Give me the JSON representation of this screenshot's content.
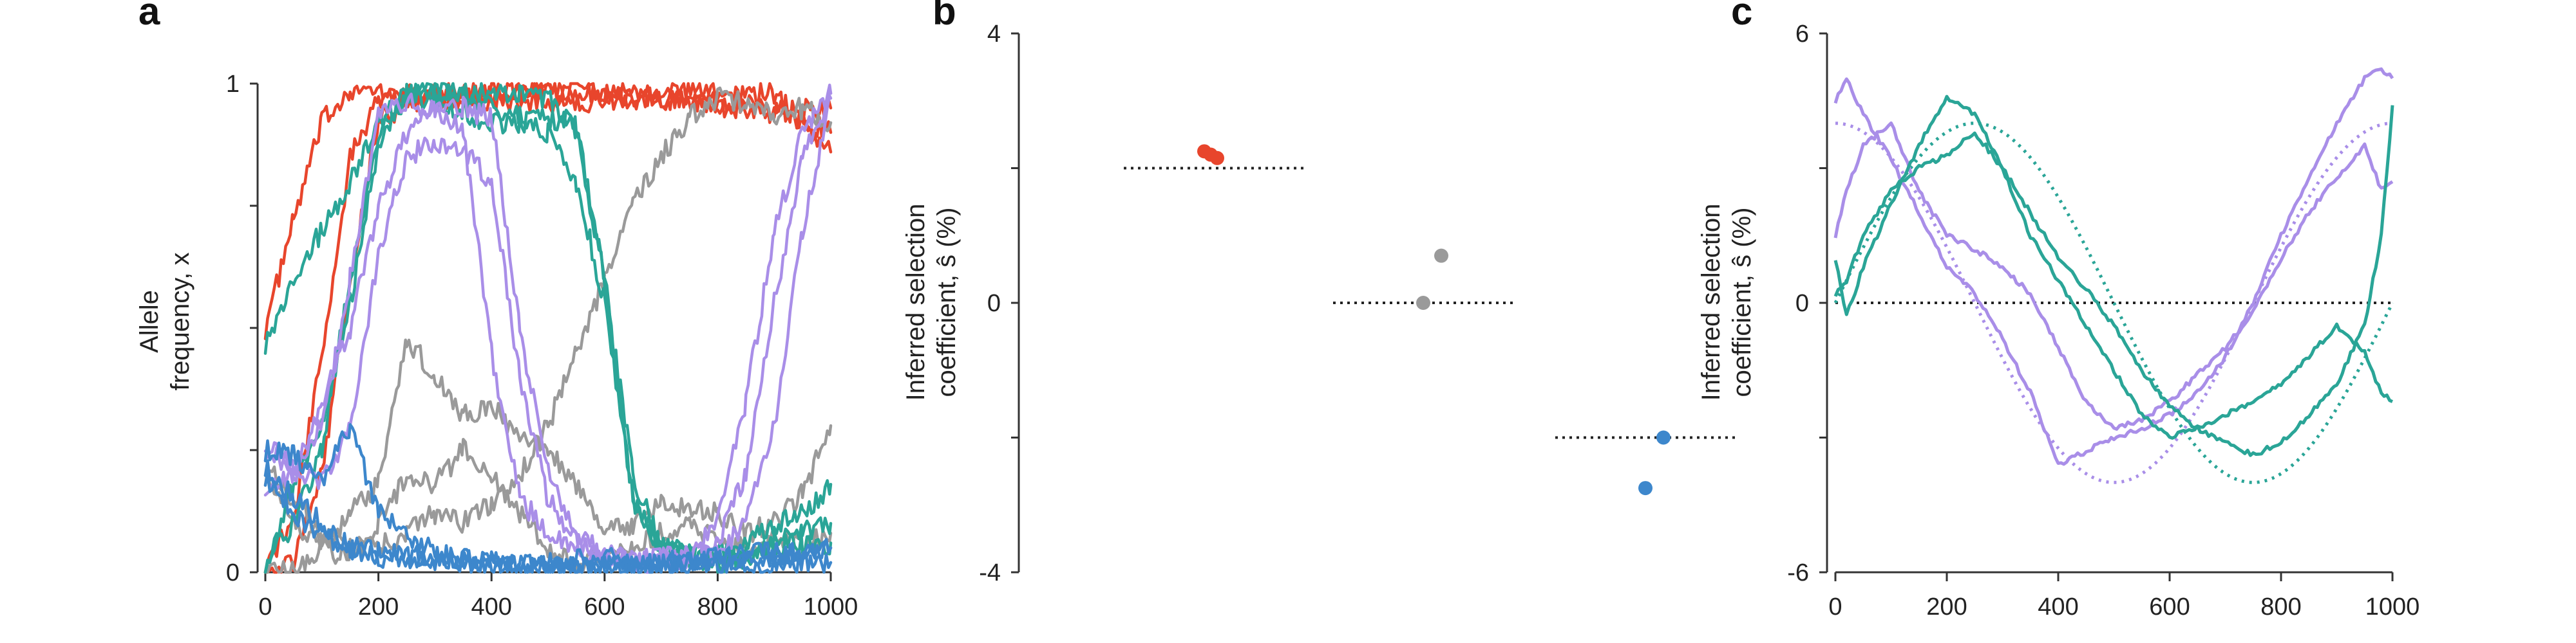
{
  "chart_data": [
    {
      "panel": "a",
      "type": "line",
      "ylabel_lines": [
        "Allele",
        "frequency, x"
      ],
      "xlim": [
        0,
        1000
      ],
      "ylim": [
        0,
        1
      ],
      "x_ticks": [
        0,
        200,
        400,
        600,
        800,
        1000
      ],
      "y_ticks": [
        0,
        0.25,
        0.5,
        0.75,
        1
      ],
      "y_tick_labels": [
        "0",
        "",
        "",
        "",
        "1"
      ],
      "grid": false,
      "legend": "none",
      "series": [
        {
          "color": "#e8452c",
          "x": [
            0,
            50,
            100,
            150,
            200,
            300,
            500,
            700,
            900,
            1000
          ],
          "y": [
            0.5,
            0.72,
            0.92,
            0.99,
            0.98,
            0.97,
            0.98,
            0.99,
            0.98,
            0.86
          ]
        },
        {
          "color": "#e8452c",
          "x": [
            0,
            50,
            100,
            150,
            200,
            300,
            500,
            700,
            900,
            1000
          ],
          "y": [
            0.02,
            0.1,
            0.45,
            0.85,
            0.97,
            0.98,
            0.99,
            0.97,
            0.94,
            0.95
          ]
        },
        {
          "color": "#e8452c",
          "x": [
            0,
            50,
            100,
            150,
            200,
            300,
            500,
            700,
            900,
            1000
          ],
          "y": [
            0.0,
            0.02,
            0.2,
            0.6,
            0.93,
            0.97,
            0.96,
            0.97,
            0.95,
            0.9
          ]
        },
        {
          "color": "#9a9a9a",
          "x": [
            0,
            50,
            100,
            150,
            200,
            250,
            300,
            350,
            400,
            450,
            500,
            550,
            600,
            650,
            700,
            750,
            800,
            850,
            900,
            950,
            1000
          ],
          "y": [
            0.22,
            0.15,
            0.08,
            0.05,
            0.05,
            0.08,
            0.12,
            0.1,
            0.14,
            0.2,
            0.3,
            0.45,
            0.6,
            0.75,
            0.85,
            0.93,
            0.97,
            0.96,
            0.93,
            0.95,
            0.92
          ]
        },
        {
          "color": "#9a9a9a",
          "x": [
            0,
            50,
            100,
            150,
            200,
            250,
            300,
            350,
            400,
            450,
            500,
            550,
            600,
            650,
            700,
            750,
            800,
            850,
            900,
            950,
            1000
          ],
          "y": [
            0.02,
            0.0,
            0.05,
            0.12,
            0.18,
            0.48,
            0.4,
            0.32,
            0.34,
            0.28,
            0.25,
            0.18,
            0.08,
            0.1,
            0.15,
            0.13,
            0.12,
            0.08,
            0.1,
            0.16,
            0.3
          ]
        },
        {
          "color": "#9a9a9a",
          "x": [
            0,
            50,
            100,
            150,
            200,
            250,
            300,
            350,
            400,
            450,
            500,
            550,
            600,
            650,
            700,
            750,
            800,
            850,
            900,
            950,
            1000
          ],
          "y": [
            0.2,
            0.1,
            0.05,
            0.03,
            0.1,
            0.2,
            0.18,
            0.25,
            0.2,
            0.12,
            0.05,
            0.02,
            0.03,
            0.05,
            0.08,
            0.1,
            0.06,
            0.05,
            0.07,
            0.06,
            0.08
          ]
        },
        {
          "color": "#2aa597",
          "x": [
            0,
            50,
            100,
            150,
            200,
            250,
            300,
            350,
            400,
            450,
            500,
            550,
            600,
            650,
            700,
            750,
            800,
            850,
            900,
            950,
            1000
          ],
          "y": [
            0.47,
            0.6,
            0.7,
            0.8,
            0.92,
            0.98,
            0.98,
            0.97,
            0.95,
            0.93,
            0.9,
            0.8,
            0.55,
            0.15,
            0.05,
            0.04,
            0.04,
            0.06,
            0.1,
            0.12,
            0.18
          ]
        },
        {
          "color": "#2aa597",
          "x": [
            0,
            50,
            100,
            150,
            200,
            250,
            300,
            350,
            400,
            450,
            500,
            550,
            600,
            650,
            700,
            750,
            800,
            850,
            900,
            950,
            1000
          ],
          "y": [
            0.0,
            0.18,
            0.3,
            0.55,
            0.88,
            0.98,
            0.99,
            0.98,
            0.98,
            0.98,
            0.97,
            0.9,
            0.6,
            0.2,
            0.05,
            0.03,
            0.02,
            0.03,
            0.06,
            0.08,
            0.1
          ]
        },
        {
          "color": "#2aa597",
          "x": [
            0,
            50,
            100,
            150,
            200,
            250,
            300,
            350,
            400,
            450,
            500,
            550,
            600,
            650,
            700,
            750,
            800,
            850,
            900,
            950,
            1000
          ],
          "y": [
            0.02,
            0.1,
            0.25,
            0.6,
            0.9,
            0.97,
            0.96,
            0.94,
            0.92,
            0.92,
            0.93,
            0.92,
            0.6,
            0.15,
            0.05,
            0.03,
            0.02,
            0.03,
            0.05,
            0.06,
            0.06
          ]
        },
        {
          "color": "#a98ee8",
          "x": [
            0,
            50,
            100,
            150,
            200,
            250,
            300,
            350,
            400,
            450,
            500,
            550,
            600,
            650,
            700,
            750,
            800,
            850,
            900,
            950,
            1000
          ],
          "y": [
            0.25,
            0.22,
            0.3,
            0.6,
            0.93,
            0.96,
            0.95,
            0.9,
            0.45,
            0.15,
            0.08,
            0.05,
            0.03,
            0.02,
            0.03,
            0.04,
            0.1,
            0.35,
            0.7,
            0.9,
            0.98
          ]
        },
        {
          "color": "#a98ee8",
          "x": [
            0,
            50,
            100,
            150,
            200,
            250,
            300,
            350,
            400,
            450,
            500,
            550,
            600,
            650,
            700,
            750,
            800,
            850,
            900,
            950,
            1000
          ],
          "y": [
            0.27,
            0.2,
            0.18,
            0.3,
            0.65,
            0.85,
            0.88,
            0.86,
            0.8,
            0.4,
            0.15,
            0.06,
            0.03,
            0.02,
            0.02,
            0.03,
            0.06,
            0.2,
            0.55,
            0.85,
            0.98
          ]
        },
        {
          "color": "#a98ee8",
          "x": [
            0,
            50,
            100,
            150,
            200,
            250,
            300,
            350,
            400,
            450,
            500,
            550,
            600,
            650,
            700,
            750,
            800,
            850,
            900,
            950,
            1000
          ],
          "y": [
            0.18,
            0.2,
            0.35,
            0.5,
            0.75,
            0.9,
            0.95,
            0.95,
            0.93,
            0.5,
            0.2,
            0.08,
            0.04,
            0.02,
            0.02,
            0.03,
            0.04,
            0.1,
            0.3,
            0.7,
            0.97
          ]
        },
        {
          "color": "#3d87cc",
          "x": [
            0,
            50,
            100,
            150,
            200,
            300,
            400,
            500,
            600,
            700,
            800,
            900,
            1000
          ],
          "y": [
            0.25,
            0.24,
            0.18,
            0.3,
            0.12,
            0.04,
            0.02,
            0.01,
            0.01,
            0.01,
            0.01,
            0.02,
            0.02
          ]
        },
        {
          "color": "#3d87cc",
          "x": [
            0,
            50,
            100,
            150,
            200,
            300,
            400,
            500,
            600,
            700,
            800,
            900,
            1000
          ],
          "y": [
            0.22,
            0.15,
            0.1,
            0.05,
            0.03,
            0.02,
            0.01,
            0.02,
            0.03,
            0.02,
            0.02,
            0.03,
            0.05
          ]
        },
        {
          "color": "#3d87cc",
          "x": [
            0,
            50,
            100,
            150,
            200,
            300,
            400,
            500,
            600,
            700,
            800,
            900,
            1000
          ],
          "y": [
            0.2,
            0.12,
            0.08,
            0.05,
            0.04,
            0.03,
            0.02,
            0.01,
            0.01,
            0.02,
            0.03,
            0.04,
            0.05
          ]
        }
      ]
    },
    {
      "panel": "b",
      "type": "scatter",
      "ylabel_lines": [
        "Inferred selection",
        "coefficient, ŝ (%)"
      ],
      "ylim": [
        -4,
        4
      ],
      "y_ticks": [
        -4,
        -2,
        0,
        2,
        4
      ],
      "y_tick_labels": [
        "-4",
        "",
        "0",
        "",
        "4"
      ],
      "grid": false,
      "legend": "none",
      "groups": [
        {
          "color": "#e8452c",
          "true_value": 2,
          "points": [
            2.25,
            2.2,
            2.15
          ]
        },
        {
          "color": "#9a9a9a",
          "true_value": 0,
          "points": [
            0.7,
            0.0
          ]
        },
        {
          "color": "#3d87cc",
          "true_value": -2,
          "points": [
            -2.0,
            -2.75
          ]
        }
      ]
    },
    {
      "panel": "c",
      "type": "line",
      "ylabel_lines": [
        "Inferred selection",
        "coefficient, ŝ (%)"
      ],
      "xlim": [
        0,
        1000
      ],
      "ylim": [
        -6,
        6
      ],
      "x_ticks": [
        0,
        200,
        400,
        600,
        800,
        1000
      ],
      "y_ticks": [
        -6,
        -3,
        0,
        3,
        6
      ],
      "y_tick_labels": [
        "-6",
        "",
        "0",
        "",
        "6"
      ],
      "grid": false,
      "legend": "none",
      "true_curves": [
        {
          "color": "#a98ee8",
          "function": "4 cos(2πx/1000)"
        },
        {
          "color": "#2aa597",
          "function": "4 sin(2πx/1000)"
        }
      ],
      "series": [
        {
          "color": "#a98ee8",
          "x": [
            0,
            20,
            50,
            100,
            150,
            200,
            250,
            300,
            350,
            400,
            450,
            500,
            550,
            600,
            650,
            700,
            750,
            800,
            850,
            900,
            950,
            980,
            1000
          ],
          "y": [
            4.5,
            5.0,
            4.2,
            3.2,
            2.0,
            0.8,
            0.2,
            -0.8,
            -2.0,
            -3.6,
            -3.3,
            -3.0,
            -2.8,
            -2.5,
            -2.0,
            -1.2,
            0.0,
            1.5,
            2.8,
            4.0,
            5.0,
            5.2,
            5.0
          ]
        },
        {
          "color": "#a98ee8",
          "x": [
            0,
            20,
            50,
            100,
            150,
            200,
            250,
            300,
            350,
            400,
            450,
            500,
            550,
            600,
            650,
            700,
            750,
            800,
            850,
            900,
            950,
            980,
            1000
          ],
          "y": [
            1.5,
            2.5,
            3.5,
            4.0,
            2.5,
            1.5,
            1.2,
            0.8,
            0.2,
            -1.0,
            -2.2,
            -2.8,
            -2.6,
            -2.2,
            -1.6,
            -1.0,
            -0.2,
            1.0,
            2.0,
            2.8,
            3.5,
            2.5,
            2.7
          ]
        },
        {
          "color": "#2aa597",
          "x": [
            0,
            20,
            50,
            100,
            150,
            200,
            250,
            300,
            350,
            400,
            450,
            500,
            550,
            600,
            650,
            700,
            750,
            800,
            850,
            900,
            950,
            980,
            1000
          ],
          "y": [
            1.0,
            -0.3,
            0.8,
            2.2,
            3.5,
            4.6,
            4.2,
            3.0,
            1.5,
            0.5,
            -0.5,
            -1.5,
            -2.5,
            -3.0,
            -2.8,
            -2.5,
            -2.2,
            -1.8,
            -1.2,
            -0.5,
            -1.1,
            -2.0,
            -2.2
          ]
        },
        {
          "color": "#2aa597",
          "x": [
            0,
            20,
            50,
            100,
            150,
            200,
            250,
            300,
            350,
            400,
            450,
            500,
            550,
            600,
            650,
            700,
            750,
            800,
            850,
            900,
            950,
            980,
            1000
          ],
          "y": [
            0.2,
            0.5,
            1.5,
            2.5,
            3.0,
            3.3,
            3.8,
            3.0,
            2.0,
            1.0,
            0.3,
            -0.5,
            -1.5,
            -2.3,
            -2.8,
            -3.1,
            -3.4,
            -3.1,
            -2.5,
            -1.8,
            -0.5,
            1.5,
            4.4
          ]
        }
      ]
    }
  ],
  "panel_labels": {
    "a": "a",
    "b": "b",
    "c": "c"
  }
}
